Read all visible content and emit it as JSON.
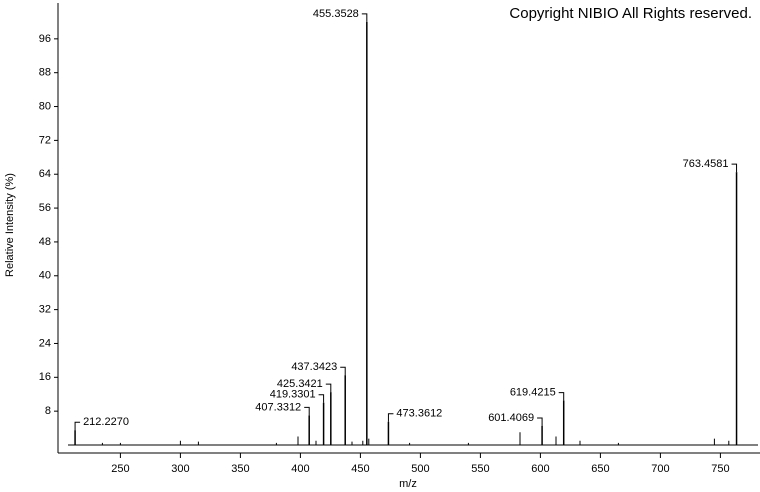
{
  "chart_data": {
    "type": "spectrum",
    "annotation": "Copyright NIBIO All Rights reserved.",
    "xlabel": "m/z",
    "ylabel": "Relative Intensity (%)",
    "xlim": [
      198,
      783
    ],
    "xticks": [
      250,
      300,
      350,
      400,
      450,
      500,
      550,
      600,
      650,
      700,
      750
    ],
    "ylim": [
      0,
      104
    ],
    "yticks": [
      8,
      16,
      24,
      32,
      40,
      48,
      56,
      64,
      72,
      80,
      88,
      96
    ],
    "color": "#000000",
    "series": [
      {
        "x": [
          212.227,
          407.3312,
          419.3301,
          425.3421,
          437.3423,
          455.3528,
          473.3612,
          601.4069,
          619.4215,
          763.4581
        ],
        "x_labels": [
          "212.2270",
          "407.3312",
          "419.3301",
          "425.3421",
          "437.3423",
          "455.3528",
          "473.3612",
          "601.4069",
          "619.4215",
          "763.4581"
        ],
        "values": [
          3.5,
          7,
          10,
          12.5,
          16.5,
          100,
          5.5,
          4.5,
          10.5,
          64.5
        ]
      },
      {
        "x": [
          235,
          250,
          300,
          315,
          380,
          398,
          413,
          443,
          452,
          457,
          491,
          540,
          583,
          613,
          633,
          665,
          745,
          757
        ],
        "values": [
          0.5,
          0.5,
          1,
          0.8,
          0.5,
          2,
          1,
          0.8,
          1,
          1.5,
          0.5,
          0.5,
          3,
          2,
          1,
          0.5,
          1.5,
          1
        ]
      }
    ]
  }
}
